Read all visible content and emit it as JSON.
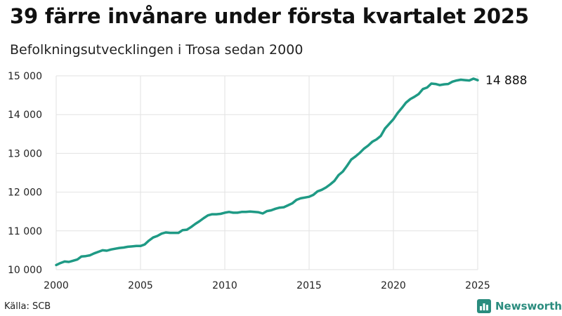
{
  "header": {
    "title": "39 färre invånare under första kvartalet 2025",
    "subtitle": "Befolkningsutvecklingen i Trosa sedan 2000"
  },
  "footer": {
    "source": "Källa: SCB",
    "brand": "Newsworthy"
  },
  "colors": {
    "line": "#1f9a85",
    "grid": "#e2e2e2",
    "brand": "#2a8c7e"
  },
  "chart_data": {
    "type": "line",
    "title": "39 färre invånare under första kvartalet 2025",
    "subtitle": "Befolkningsutvecklingen i Trosa sedan 2000",
    "xlabel": "",
    "ylabel": "",
    "xlim": [
      2000,
      2025
    ],
    "ylim": [
      10000,
      15000
    ],
    "grid": true,
    "x_ticks": [
      2000,
      2005,
      2010,
      2015,
      2020,
      2025
    ],
    "x_tick_labels": [
      "2000",
      "2005",
      "2010",
      "2015",
      "2020",
      "2025"
    ],
    "y_ticks": [
      10000,
      11000,
      12000,
      13000,
      14000,
      15000
    ],
    "y_tick_labels": [
      "10 000",
      "11 000",
      "12 000",
      "13 000",
      "14 000",
      "15 000"
    ],
    "end_label": "14 888",
    "series": [
      {
        "name": "Befolkning",
        "x": [
          2000.0,
          2000.25,
          2000.5,
          2000.75,
          2001.0,
          2001.25,
          2001.5,
          2001.75,
          2002.0,
          2002.25,
          2002.5,
          2002.75,
          2003.0,
          2003.25,
          2003.5,
          2003.75,
          2004.0,
          2004.25,
          2004.5,
          2004.75,
          2005.0,
          2005.25,
          2005.5,
          2005.75,
          2006.0,
          2006.25,
          2006.5,
          2006.75,
          2007.0,
          2007.25,
          2007.5,
          2007.75,
          2008.0,
          2008.25,
          2008.5,
          2008.75,
          2009.0,
          2009.25,
          2009.5,
          2009.75,
          2010.0,
          2010.25,
          2010.5,
          2010.75,
          2011.0,
          2011.25,
          2011.5,
          2011.75,
          2012.0,
          2012.25,
          2012.5,
          2012.75,
          2013.0,
          2013.25,
          2013.5,
          2013.75,
          2014.0,
          2014.25,
          2014.5,
          2014.75,
          2015.0,
          2015.25,
          2015.5,
          2015.75,
          2016.0,
          2016.25,
          2016.5,
          2016.75,
          2017.0,
          2017.25,
          2017.5,
          2017.75,
          2018.0,
          2018.25,
          2018.5,
          2018.75,
          2019.0,
          2019.25,
          2019.5,
          2019.75,
          2020.0,
          2020.25,
          2020.5,
          2020.75,
          2021.0,
          2021.25,
          2021.5,
          2021.75,
          2022.0,
          2022.25,
          2022.5,
          2022.75,
          2023.0,
          2023.25,
          2023.5,
          2023.75,
          2024.0,
          2024.25,
          2024.5,
          2024.75,
          2025.0
        ],
        "values": [
          10120,
          10170,
          10210,
          10200,
          10230,
          10260,
          10340,
          10350,
          10370,
          10420,
          10460,
          10500,
          10490,
          10520,
          10540,
          10560,
          10570,
          10590,
          10600,
          10610,
          10610,
          10650,
          10750,
          10830,
          10870,
          10930,
          10960,
          10950,
          10950,
          10950,
          11020,
          11030,
          11100,
          11180,
          11250,
          11330,
          11400,
          11430,
          11430,
          11440,
          11470,
          11490,
          11470,
          11470,
          11490,
          11490,
          11500,
          11490,
          11480,
          11450,
          11510,
          11530,
          11570,
          11600,
          11610,
          11660,
          11710,
          11800,
          11840,
          11860,
          11880,
          11930,
          12020,
          12060,
          12120,
          12200,
          12290,
          12440,
          12530,
          12680,
          12840,
          12920,
          13010,
          13120,
          13200,
          13300,
          13360,
          13450,
          13640,
          13760,
          13880,
          14040,
          14170,
          14310,
          14400,
          14460,
          14530,
          14660,
          14700,
          14800,
          14790,
          14760,
          14780,
          14790,
          14850,
          14880,
          14900,
          14890,
          14880,
          14927,
          14888
        ]
      }
    ]
  }
}
